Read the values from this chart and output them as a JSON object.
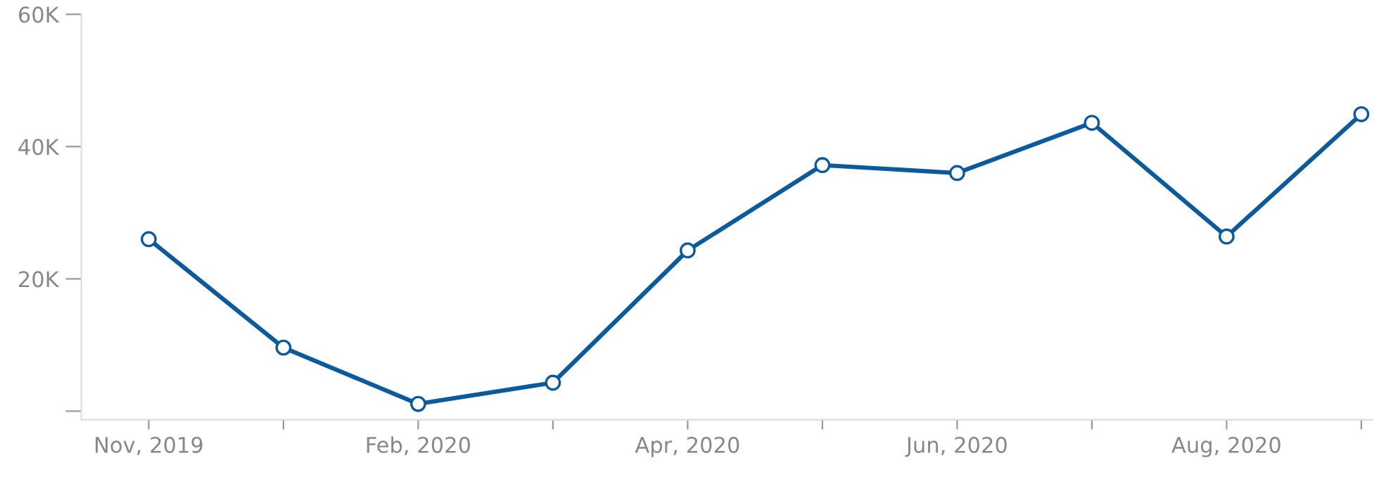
{
  "chart_data": {
    "type": "line",
    "categories": [
      "Nov, 2019",
      null,
      "Feb, 2020",
      null,
      "Apr, 2020",
      null,
      "Jun, 2020",
      null,
      "Aug, 2020",
      null
    ],
    "series": [
      {
        "color": "#0b5a9e",
        "values": [
          26000,
          9600,
          1100,
          4300,
          24300,
          37200,
          36000,
          43600,
          26400,
          44900
        ]
      }
    ],
    "ylim": [
      -1300,
      60000
    ],
    "yticks": [
      {
        "value": 0,
        "label": null
      },
      {
        "value": 20000,
        "label": "20K"
      },
      {
        "value": 40000,
        "label": "40K"
      },
      {
        "value": 60000,
        "label": "60K"
      }
    ],
    "marker": "circle",
    "line_style": "solid",
    "grid": false
  }
}
